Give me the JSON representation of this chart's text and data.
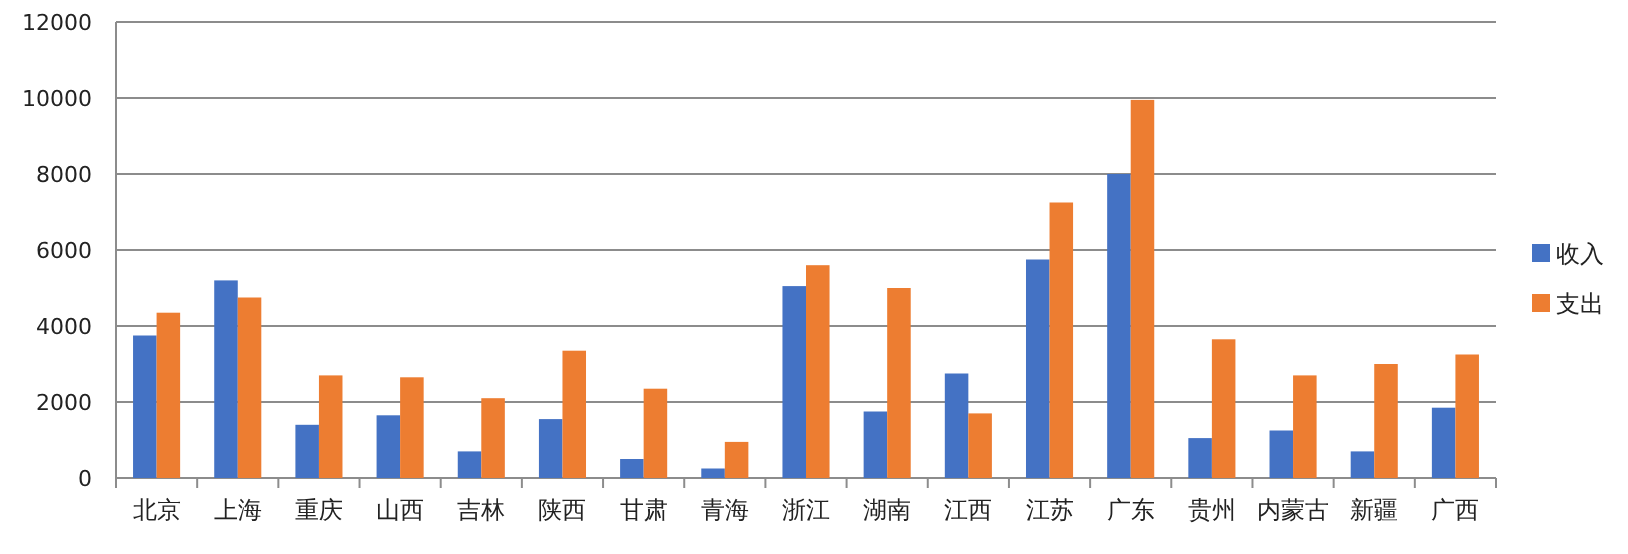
{
  "chart_data": {
    "type": "bar",
    "categories": [
      "北京",
      "上海",
      "重庆",
      "山西",
      "吉林",
      "陕西",
      "甘肃",
      "青海",
      "浙江",
      "湖南",
      "江西",
      "江苏",
      "广东",
      "贵州",
      "内蒙古",
      "新疆",
      "广西"
    ],
    "series": [
      {
        "name": "收入",
        "color": "#4472c4",
        "values": [
          3750,
          5200,
          1400,
          1650,
          700,
          1550,
          500,
          250,
          5050,
          1750,
          2750,
          5750,
          8000,
          1050,
          1250,
          700,
          1850
        ]
      },
      {
        "name": "支出",
        "color": "#ed7d31",
        "values": [
          4350,
          4750,
          2700,
          2650,
          2100,
          3350,
          2350,
          950,
          5600,
          5000,
          1700,
          7250,
          9950,
          3650,
          2700,
          3000,
          3250
        ]
      }
    ],
    "ylim": [
      0,
      12000
    ],
    "yticks": [
      0,
      2000,
      4000,
      6000,
      8000,
      10000,
      12000
    ],
    "grid": "y",
    "legend": "right"
  }
}
